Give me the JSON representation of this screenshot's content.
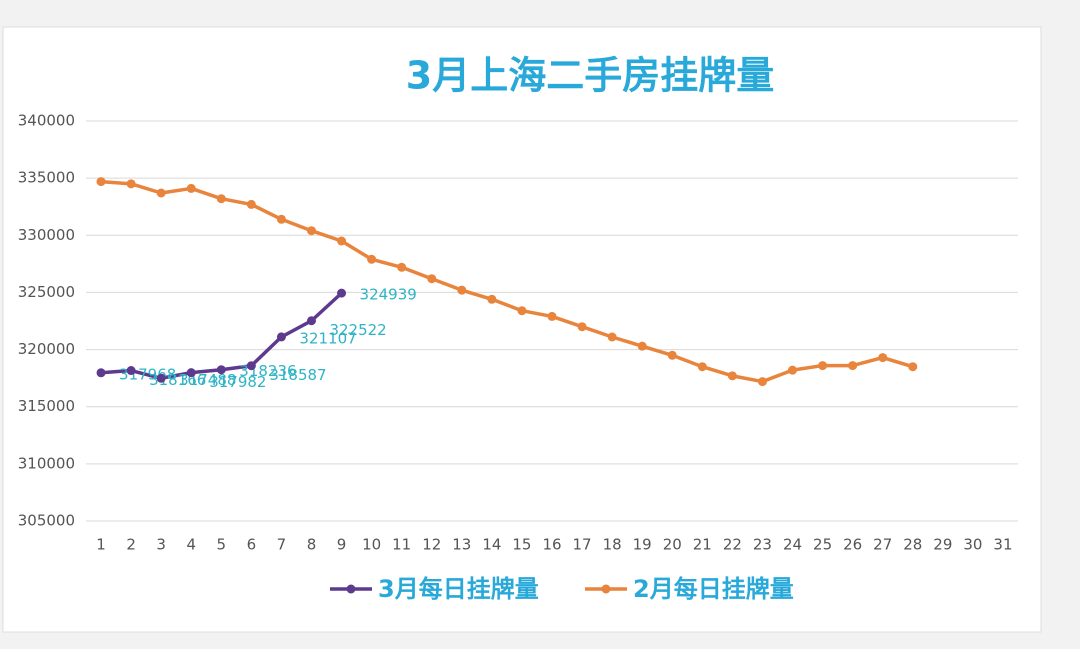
{
  "chart_data": {
    "type": "line",
    "title": "3月上海二手房挂牌量",
    "categories": [
      "1",
      "2",
      "3",
      "4",
      "5",
      "6",
      "7",
      "8",
      "9",
      "10",
      "11",
      "12",
      "13",
      "14",
      "15",
      "16",
      "17",
      "18",
      "19",
      "20",
      "21",
      "22",
      "23",
      "24",
      "25",
      "26",
      "27",
      "28",
      "29",
      "30",
      "31"
    ],
    "series": [
      {
        "name": "3月每日挂牌量",
        "color": "#5e3a8e",
        "data_labels": true,
        "values": [
          317968,
          318166,
          317488,
          317982,
          318236,
          318587,
          321107,
          322522,
          324939,
          null,
          null,
          null,
          null,
          null,
          null,
          null,
          null,
          null,
          null,
          null,
          null,
          null,
          null,
          null,
          null,
          null,
          null,
          null,
          null,
          null,
          null
        ]
      },
      {
        "name": "2月每日挂牌量",
        "color": "#e8843c",
        "data_labels": false,
        "values": [
          334700,
          334500,
          333700,
          334100,
          333200,
          332700,
          331400,
          330400,
          329500,
          327900,
          327200,
          326200,
          325200,
          324400,
          323400,
          322900,
          322000,
          321100,
          320300,
          319500,
          318500,
          317700,
          317200,
          318200,
          318600,
          318600,
          319300,
          318500,
          null,
          null,
          null
        ]
      }
    ],
    "ylim": [
      305000,
      340000
    ],
    "yticks": [
      305000,
      310000,
      315000,
      320000,
      325000,
      330000,
      335000,
      340000
    ],
    "grid": true,
    "legend": "bottom"
  }
}
